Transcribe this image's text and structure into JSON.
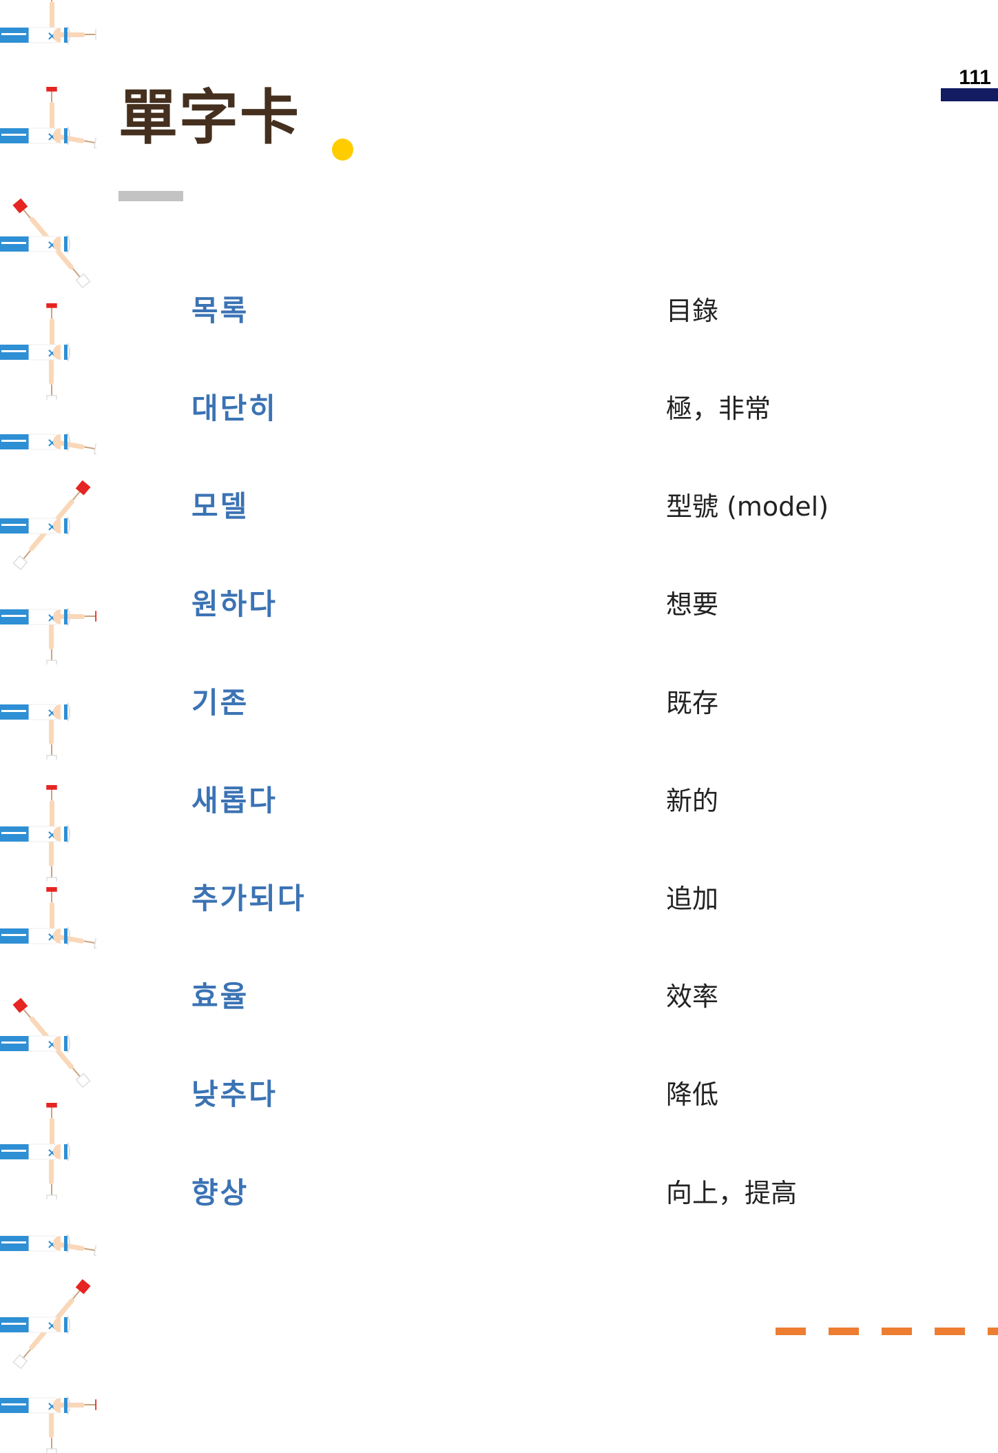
{
  "page": {
    "title": "單字卡",
    "page_number": "111",
    "colors": {
      "title": "#45301f",
      "korean": "#3b73b4",
      "accent_dot": "#ffcc00",
      "page_bar": "#111c63",
      "dashes": "#ed7d31"
    },
    "decoration_icon": "semaphore-figure-icon"
  },
  "vocab": [
    {
      "ko": "목록",
      "zh": "目錄"
    },
    {
      "ko": "대단히",
      "zh": "極，非常"
    },
    {
      "ko": "모델",
      "zh": "型號 (model)"
    },
    {
      "ko": "원하다",
      "zh": "想要"
    },
    {
      "ko": "기존",
      "zh": "既存"
    },
    {
      "ko": "새롭다",
      "zh": "新的"
    },
    {
      "ko": "추가되다",
      "zh": "追加"
    },
    {
      "ko": "효율",
      "zh": "效率"
    },
    {
      "ko": "낮추다",
      "zh": "降低"
    },
    {
      "ko": "향상",
      "zh": "向上，提高"
    }
  ]
}
